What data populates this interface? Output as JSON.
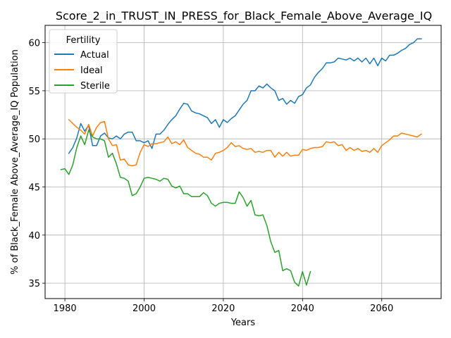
{
  "chart_data": {
    "type": "line",
    "title": "Score_2_in_TRUST_IN_PRESS_for_Black_Female_Above_Average_IQ",
    "xlabel": "Years",
    "ylabel": "% of Black_Female Above_Average_IQ Population",
    "xlim": [
      1975,
      2075
    ],
    "ylim": [
      33.4,
      61.8
    ],
    "x_ticks": [
      1980,
      2000,
      2020,
      2040,
      2060
    ],
    "y_ticks": [
      35,
      40,
      45,
      50,
      55,
      60
    ],
    "grid": true,
    "legend": {
      "title": "Fertility",
      "position": "top-left"
    },
    "series": [
      {
        "name": "Actual",
        "color": "#1f77b4",
        "x": [
          1981,
          1982,
          1983,
          1984,
          1985,
          1986,
          1987,
          1988,
          1989,
          1990,
          1991,
          1992,
          1993,
          1994,
          1995,
          1996,
          1997,
          1998,
          1999,
          2000,
          2001,
          2002,
          2003,
          2004,
          2005,
          2006,
          2007,
          2008,
          2009,
          2010,
          2011,
          2012,
          2013,
          2014,
          2015,
          2016,
          2017,
          2018,
          2019,
          2020,
          2021,
          2022,
          2023,
          2024,
          2025,
          2026,
          2027,
          2028,
          2029,
          2030,
          2031,
          2032,
          2033,
          2034,
          2035,
          2036,
          2037,
          2038,
          2039,
          2040,
          2041,
          2042,
          2043,
          2044,
          2045,
          2046,
          2047,
          2048,
          2049,
          2050,
          2051,
          2052,
          2053,
          2054,
          2055,
          2056,
          2057,
          2058,
          2059,
          2060,
          2061,
          2062,
          2063,
          2064,
          2065,
          2066,
          2067,
          2068,
          2069,
          2070
        ],
        "values": [
          48.5,
          49.1,
          50.1,
          51.6,
          50.8,
          51.4,
          49.3,
          49.3,
          50.3,
          50.6,
          50.1,
          50.0,
          50.3,
          50.0,
          50.5,
          50.7,
          50.7,
          49.8,
          49.8,
          49.6,
          49.8,
          49.0,
          50.5,
          50.5,
          50.9,
          51.5,
          52.0,
          52.4,
          53.1,
          53.7,
          53.6,
          52.9,
          52.7,
          52.6,
          52.4,
          52.2,
          51.6,
          52.0,
          51.2,
          52.0,
          51.7,
          52.1,
          52.4,
          53.0,
          53.6,
          54.0,
          55.0,
          55.0,
          55.5,
          55.3,
          55.7,
          55.3,
          55.0,
          54.0,
          54.2,
          53.6,
          54.0,
          53.7,
          54.4,
          54.6,
          55.3,
          55.6,
          56.4,
          56.9,
          57.3,
          57.9,
          57.9,
          58.0,
          58.4,
          58.3,
          58.2,
          58.4,
          58.1,
          58.4,
          58.0,
          58.4,
          57.8,
          58.4,
          57.6,
          58.4,
          58.1,
          58.7,
          58.7,
          58.9,
          59.2,
          59.4,
          59.8,
          60.0,
          60.4,
          60.4
        ]
      },
      {
        "name": "Ideal",
        "color": "#ff7f0e",
        "x": [
          1981,
          1982,
          1983,
          1984,
          1985,
          1986,
          1987,
          1988,
          1989,
          1990,
          1991,
          1992,
          1993,
          1994,
          1995,
          1996,
          1997,
          1998,
          1999,
          2000,
          2001,
          2002,
          2003,
          2004,
          2005,
          2006,
          2007,
          2008,
          2009,
          2010,
          2011,
          2012,
          2013,
          2014,
          2015,
          2016,
          2017,
          2018,
          2019,
          2020,
          2021,
          2022,
          2023,
          2024,
          2025,
          2026,
          2027,
          2028,
          2029,
          2030,
          2031,
          2032,
          2033,
          2034,
          2035,
          2036,
          2037,
          2038,
          2039,
          2040,
          2041,
          2042,
          2043,
          2044,
          2045,
          2046,
          2047,
          2048,
          2049,
          2050,
          2051,
          2052,
          2053,
          2054,
          2055,
          2056,
          2057,
          2058,
          2059,
          2060,
          2061,
          2062,
          2063,
          2064,
          2065,
          2066,
          2067,
          2068,
          2069,
          2070
        ],
        "values": [
          52.0,
          51.6,
          51.2,
          50.9,
          50.5,
          51.5,
          50.3,
          51.2,
          51.7,
          51.8,
          50.0,
          49.3,
          49.4,
          47.8,
          47.9,
          47.3,
          47.2,
          47.3,
          48.6,
          49.4,
          49.2,
          49.5,
          49.5,
          49.6,
          49.7,
          50.2,
          49.5,
          49.7,
          49.4,
          49.9,
          49.1,
          48.8,
          48.5,
          48.4,
          48.1,
          48.1,
          47.8,
          48.5,
          48.6,
          48.8,
          49.1,
          49.6,
          49.2,
          49.3,
          49.0,
          48.9,
          49.0,
          48.6,
          48.7,
          48.6,
          48.8,
          48.8,
          48.1,
          48.6,
          48.2,
          48.6,
          48.2,
          48.3,
          48.3,
          48.9,
          48.8,
          49.0,
          49.1,
          49.1,
          49.2,
          49.7,
          49.6,
          49.7,
          49.3,
          49.4,
          48.8,
          49.1,
          48.8,
          49.0,
          48.7,
          48.8,
          48.6,
          49.0,
          48.6,
          49.3,
          49.6,
          49.9,
          50.3,
          50.3,
          50.6,
          50.5,
          50.4,
          50.3,
          50.2,
          50.5
        ]
      },
      {
        "name": "Sterile",
        "color": "#2ca02c",
        "x": [
          1979,
          1980,
          1981,
          1982,
          1983,
          1984,
          1985,
          1986,
          1987,
          1988,
          1989,
          1990,
          1991,
          1992,
          1993,
          1994,
          1995,
          1996,
          1997,
          1998,
          1999,
          2000,
          2001,
          2002,
          2003,
          2004,
          2005,
          2006,
          2007,
          2008,
          2009,
          2010,
          2011,
          2012,
          2013,
          2014,
          2015,
          2016,
          2017,
          2018,
          2019,
          2020,
          2021,
          2022,
          2023,
          2024,
          2025,
          2026,
          2027,
          2028,
          2029,
          2030,
          2031,
          2032,
          2033,
          2034,
          2035,
          2036,
          2037,
          2038,
          2039,
          2040,
          2041,
          2042
        ],
        "values": [
          46.8,
          46.9,
          46.3,
          47.3,
          49.1,
          50.3,
          49.4,
          50.9,
          50.2,
          50.0,
          50.0,
          49.8,
          48.1,
          48.5,
          47.4,
          46.0,
          45.9,
          45.6,
          44.1,
          44.3,
          45.0,
          45.9,
          46.0,
          45.9,
          45.8,
          45.6,
          45.9,
          45.8,
          45.1,
          44.9,
          45.1,
          44.3,
          44.3,
          44.0,
          44.0,
          44.0,
          44.4,
          44.1,
          43.3,
          43.0,
          43.3,
          43.4,
          43.4,
          43.3,
          43.3,
          44.5,
          43.9,
          43.0,
          43.6,
          42.1,
          42.0,
          42.1,
          41.0,
          39.3,
          38.2,
          38.4,
          36.3,
          36.5,
          36.3,
          35.1,
          34.7,
          36.2,
          34.8,
          36.2
        ]
      }
    ]
  }
}
